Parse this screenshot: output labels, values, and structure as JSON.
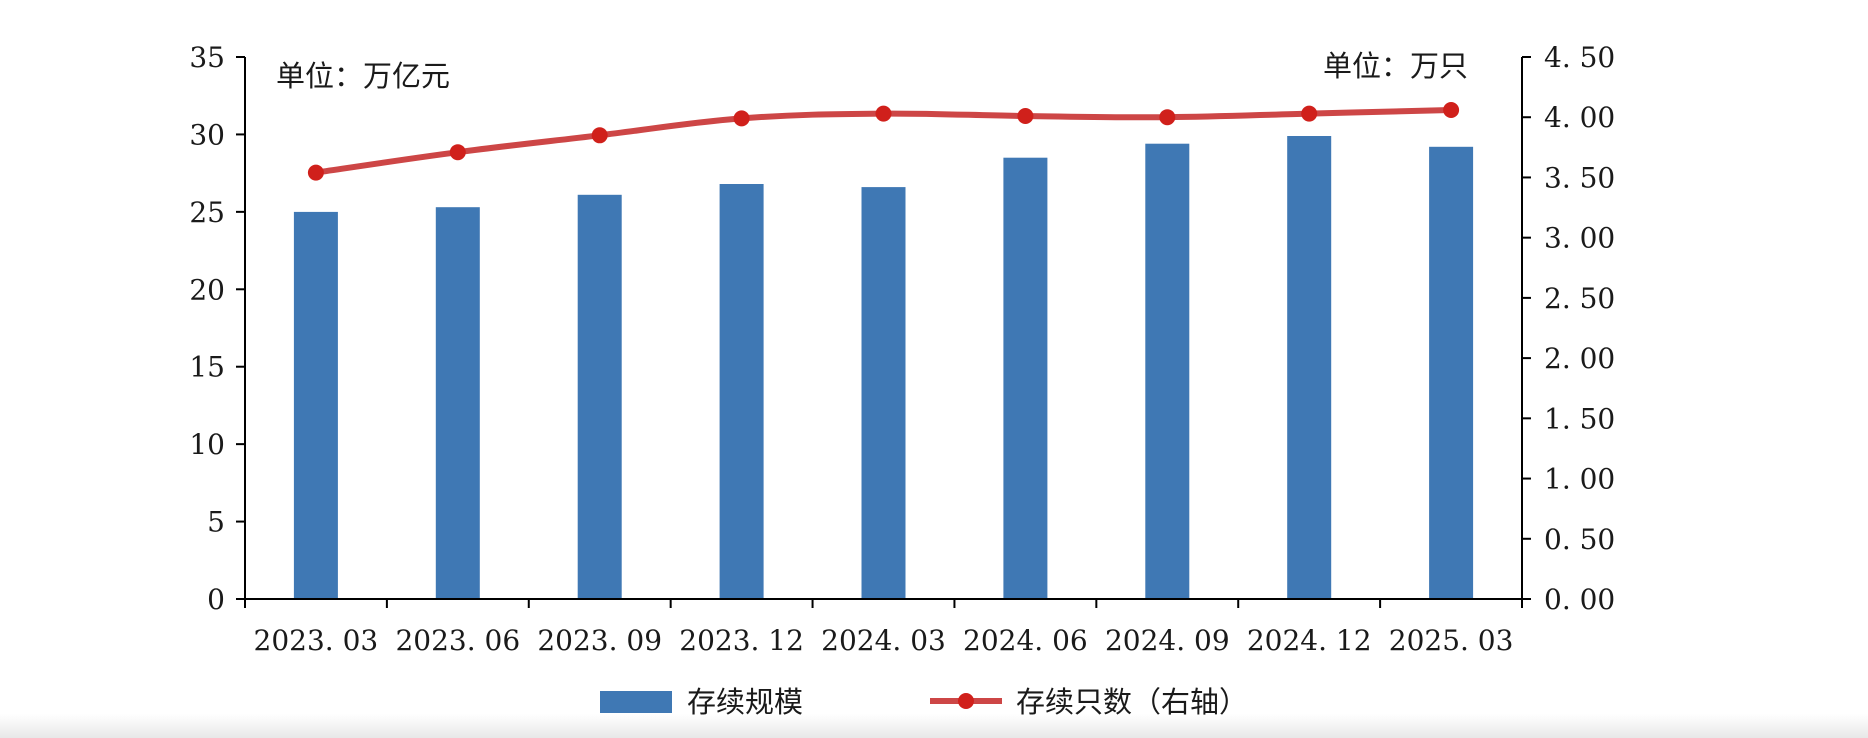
{
  "chart_data": {
    "type": "bar",
    "categories": [
      "2023.03",
      "2023.06",
      "2023.09",
      "2023.12",
      "2024.03",
      "2024.06",
      "2024.09",
      "2024.12",
      "2025.03"
    ],
    "series": [
      {
        "name": "存续规模",
        "type": "bar",
        "axis": "left",
        "color": "#3f78b4",
        "values": [
          25.0,
          25.3,
          26.1,
          26.8,
          26.6,
          28.5,
          29.4,
          29.9,
          29.2
        ]
      },
      {
        "name": "存续只数（右轴）",
        "type": "line",
        "axis": "right",
        "color": "#cd4646",
        "marker_color": "#d0201b",
        "values": [
          3.54,
          3.71,
          3.85,
          3.99,
          4.03,
          4.01,
          4.0,
          4.03,
          4.06
        ]
      }
    ],
    "left_axis": {
      "unit_label": "单位：万亿元",
      "ylim": [
        0,
        35
      ],
      "ticks": [
        0,
        5,
        10,
        15,
        20,
        25,
        30,
        35
      ],
      "tick_labels": [
        "0",
        "5",
        "10",
        "15",
        "20",
        "25",
        "30",
        "35"
      ]
    },
    "right_axis": {
      "unit_label": "单位：万只",
      "ylim": [
        0,
        4.5
      ],
      "ticks": [
        0,
        0.5,
        1.0,
        1.5,
        2.0,
        2.5,
        3.0,
        3.5,
        4.0,
        4.5
      ],
      "tick_labels": [
        "0. 00",
        "0. 50",
        "1. 00",
        "1. 50",
        "2. 00",
        "2. 50",
        "3. 00",
        "3. 50",
        "4. 00",
        "4. 50"
      ]
    },
    "x_tick_labels": [
      "2023. 03",
      "2023. 06",
      "2023. 09",
      "2023. 12",
      "2024. 03",
      "2024. 06",
      "2024. 09",
      "2024. 12",
      "2025. 03"
    ],
    "grid": false,
    "legend_position": "bottom"
  }
}
